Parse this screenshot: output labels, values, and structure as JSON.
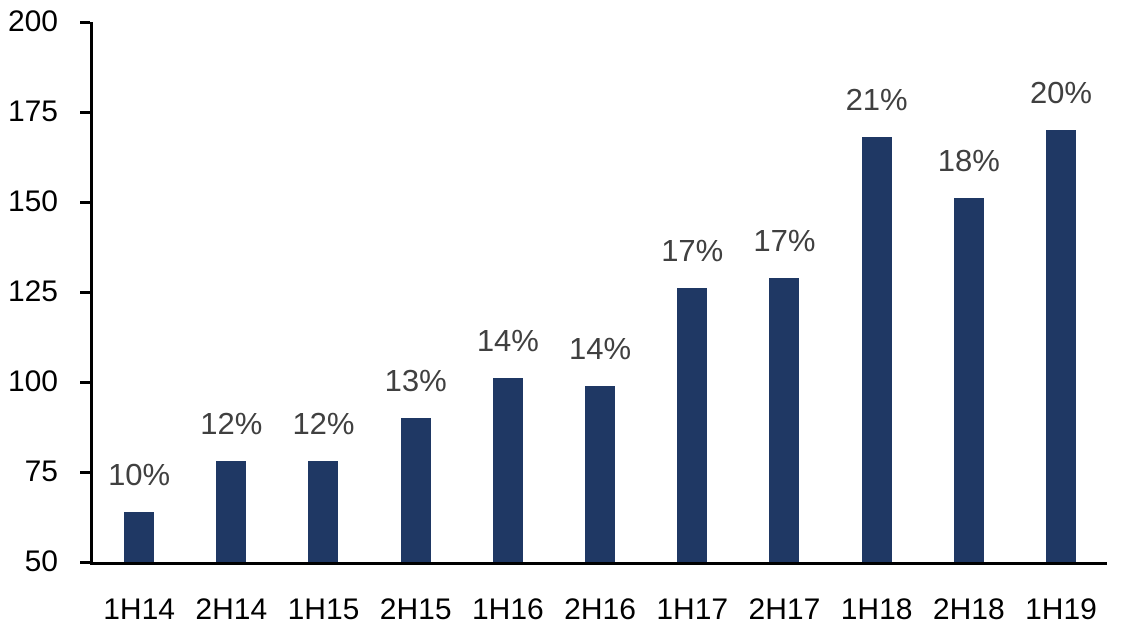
{
  "chart_data": {
    "type": "bar",
    "title": "",
    "xlabel": "",
    "ylabel": "",
    "categories": [
      "1H14",
      "2H14",
      "1H15",
      "2H15",
      "1H16",
      "2H16",
      "1H17",
      "2H17",
      "1H18",
      "2H18",
      "1H19"
    ],
    "values": [
      64,
      78,
      78,
      90,
      101,
      99,
      126,
      129,
      168,
      151,
      170
    ],
    "bar_labels": [
      "10%",
      "12%",
      "12%",
      "13%",
      "14%",
      "14%",
      "17%",
      "17%",
      "21%",
      "18%",
      "20%"
    ],
    "ylim": [
      50,
      200
    ],
    "yticks": [
      50,
      75,
      100,
      125,
      150,
      175,
      200
    ],
    "grid": false,
    "legend": null,
    "bar_color": "#1F3864",
    "label_color": "#404040",
    "axis_color": "#000000",
    "background_color": "#FFFFFF"
  }
}
